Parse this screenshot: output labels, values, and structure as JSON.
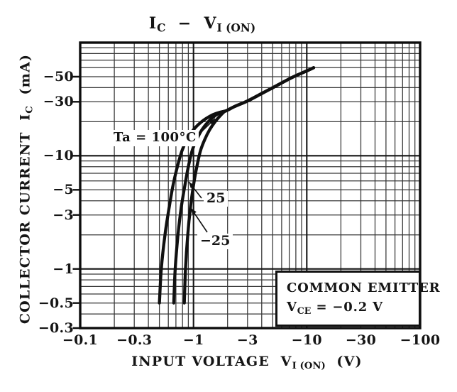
{
  "colors": {
    "ink": "#151515",
    "grid_minor": "#262626",
    "grid_major": "#161616",
    "border": "#0d0d0d",
    "curve": "#101010",
    "background": "#ffffff"
  },
  "chart_data": {
    "type": "line",
    "title": "IC − VI(ON)",
    "title_parts": [
      {
        "t": "I"
      },
      {
        "t": "C",
        "sub": 1
      },
      {
        "t": "  −  "
      },
      {
        "t": "V"
      },
      {
        "t": "I (ON)",
        "sub": 1
      }
    ],
    "xlabel": "INPUT VOLTAGE VI(ON) (V)",
    "xlabel_parts": [
      {
        "t": "INPUT VOLTAGE  V"
      },
      {
        "t": "I (ON)",
        "sub": 1
      },
      {
        "t": "  (V)"
      }
    ],
    "ylabel": "COLLECTOR CURRENT IC (mA)",
    "ylabel_parts": [
      {
        "t": "COLLECTOR CURRENT  I"
      },
      {
        "t": "C",
        "sub": 1
      },
      {
        "t": "  (mA)"
      }
    ],
    "scale": "log-log, both axes negative",
    "x_range": [
      -0.1,
      -100
    ],
    "y_range": [
      -0.3,
      -100
    ],
    "grid": "full decade log grid, on",
    "x_ticks": [
      {
        "label": "−0.1",
        "value": -0.1
      },
      {
        "label": "−0.3",
        "value": -0.3
      },
      {
        "label": "−1",
        "value": -1
      },
      {
        "label": "−3",
        "value": -3
      },
      {
        "label": "−10",
        "value": -10
      },
      {
        "label": "−30",
        "value": -30
      },
      {
        "label": "−100",
        "value": -100
      }
    ],
    "y_ticks": [
      {
        "label": "−0.3",
        "value": -0.3
      },
      {
        "label": "−0.5",
        "value": -0.5
      },
      {
        "label": "−1",
        "value": -1
      },
      {
        "label": "−3",
        "value": -3
      },
      {
        "label": "−5",
        "value": -5
      },
      {
        "label": "−10",
        "value": -10
      },
      {
        "label": "−30",
        "value": -30
      },
      {
        "label": "−50",
        "value": -50
      }
    ],
    "series": [
      {
        "name": "Ta = 100°C",
        "points": [
          [
            -0.5,
            -0.5
          ],
          [
            -0.52,
            -1
          ],
          [
            -0.56,
            -2
          ],
          [
            -0.61,
            -3.5
          ],
          [
            -0.66,
            -5.5
          ],
          [
            -0.72,
            -8
          ],
          [
            -0.79,
            -11
          ],
          [
            -0.88,
            -14
          ],
          [
            -1.0,
            -17
          ],
          [
            -1.18,
            -20
          ],
          [
            -1.45,
            -22.8
          ],
          [
            -1.7,
            -24.2
          ],
          [
            -1.95,
            -25
          ],
          [
            -2.3,
            -27.2
          ],
          [
            -3.0,
            -30.5
          ],
          [
            -4.0,
            -35.5
          ],
          [
            -5.5,
            -42
          ],
          [
            -7.5,
            -49.5
          ],
          [
            -9.5,
            -55
          ],
          [
            -11.5,
            -60
          ]
        ]
      },
      {
        "name": "25",
        "points": [
          [
            -0.67,
            -0.5
          ],
          [
            -0.69,
            -1
          ],
          [
            -0.73,
            -2
          ],
          [
            -0.78,
            -3.5
          ],
          [
            -0.84,
            -5.5
          ],
          [
            -0.9,
            -8
          ],
          [
            -0.97,
            -11
          ],
          [
            -1.07,
            -14
          ],
          [
            -1.19,
            -17
          ],
          [
            -1.35,
            -20
          ],
          [
            -1.57,
            -22.8
          ],
          [
            -1.78,
            -24.4
          ],
          [
            -1.95,
            -25
          ],
          [
            -2.3,
            -27.2
          ],
          [
            -3.0,
            -30.5
          ],
          [
            -4.0,
            -35.5
          ],
          [
            -5.5,
            -42
          ],
          [
            -7.5,
            -49.5
          ],
          [
            -9.5,
            -55
          ],
          [
            -11.5,
            -60
          ]
        ]
      },
      {
        "name": "−25",
        "points": [
          [
            -0.83,
            -0.5
          ],
          [
            -0.85,
            -1
          ],
          [
            -0.89,
            -2
          ],
          [
            -0.94,
            -3.5
          ],
          [
            -1.0,
            -5.5
          ],
          [
            -1.07,
            -8
          ],
          [
            -1.15,
            -11
          ],
          [
            -1.26,
            -14
          ],
          [
            -1.39,
            -17
          ],
          [
            -1.55,
            -20
          ],
          [
            -1.75,
            -23
          ],
          [
            -1.88,
            -24.6
          ],
          [
            -1.95,
            -25
          ],
          [
            -2.3,
            -27.2
          ],
          [
            -3.0,
            -30.5
          ],
          [
            -4.0,
            -35.5
          ],
          [
            -5.5,
            -42
          ],
          [
            -7.5,
            -49.5
          ],
          [
            -9.5,
            -55
          ],
          [
            -11.5,
            -60
          ]
        ]
      }
    ],
    "condition_box": {
      "line1": "COMMON EMITTER",
      "line2": "VCE = −0.2 V",
      "line2_parts": [
        {
          "t": "V"
        },
        {
          "t": "CE",
          "sub": 1
        },
        {
          "t": " = −0.2 V"
        }
      ]
    },
    "legend_position": "labels with leader arrows beside curves"
  }
}
